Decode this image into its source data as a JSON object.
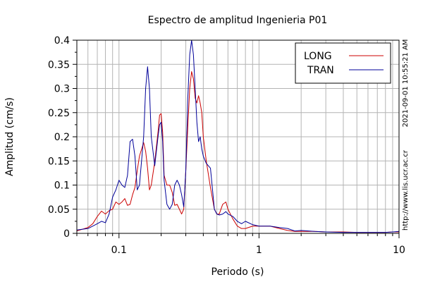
{
  "chart_data": {
    "type": "line",
    "title": "Espectro de amplitud Ingenieria P01",
    "xlabel": "Periodo (s)",
    "ylabel": "Amplitud (cm/s)",
    "xscale": "log",
    "xlim": [
      0.05,
      10
    ],
    "ylim": [
      0,
      0.4
    ],
    "grid": true,
    "legend_position": "top-right",
    "x_tick_labels": [
      {
        "value": 0.1,
        "label": "0.1"
      },
      {
        "value": 1,
        "label": "1"
      },
      {
        "value": 10,
        "label": "10"
      }
    ],
    "y_tick_labels": [
      {
        "value": 0,
        "label": "0"
      },
      {
        "value": 0.05,
        "label": "0.05"
      },
      {
        "value": 0.1,
        "label": "0.1"
      },
      {
        "value": 0.15,
        "label": "0.15"
      },
      {
        "value": 0.2,
        "label": "0.2"
      },
      {
        "value": 0.25,
        "label": "0.25"
      },
      {
        "value": 0.3,
        "label": "0.3"
      },
      {
        "value": 0.35,
        "label": "0.35"
      },
      {
        "value": 0.4,
        "label": "0.4"
      }
    ],
    "series": [
      {
        "name": "LONG",
        "color": "#cc0000",
        "x": [
          0.05,
          0.06,
          0.065,
          0.07,
          0.075,
          0.08,
          0.085,
          0.09,
          0.095,
          0.1,
          0.105,
          0.11,
          0.115,
          0.12,
          0.125,
          0.13,
          0.135,
          0.14,
          0.15,
          0.155,
          0.16,
          0.165,
          0.17,
          0.18,
          0.19,
          0.195,
          0.2,
          0.205,
          0.21,
          0.22,
          0.23,
          0.24,
          0.25,
          0.26,
          0.27,
          0.28,
          0.29,
          0.3,
          0.31,
          0.32,
          0.33,
          0.34,
          0.35,
          0.36,
          0.37,
          0.38,
          0.39,
          0.4,
          0.42,
          0.45,
          0.48,
          0.5,
          0.52,
          0.55,
          0.58,
          0.6,
          0.65,
          0.7,
          0.75,
          0.8,
          0.9,
          1.0,
          1.2,
          1.4,
          1.6,
          1.8,
          2.0,
          2.5,
          3.0,
          4.0,
          5.0,
          6.0,
          8.0,
          9.0,
          10.0
        ],
        "y": [
          0.005,
          0.012,
          0.02,
          0.035,
          0.046,
          0.04,
          0.047,
          0.05,
          0.065,
          0.06,
          0.065,
          0.072,
          0.058,
          0.06,
          0.08,
          0.095,
          0.13,
          0.16,
          0.188,
          0.17,
          0.135,
          0.09,
          0.1,
          0.148,
          0.21,
          0.245,
          0.248,
          0.21,
          0.12,
          0.1,
          0.1,
          0.085,
          0.058,
          0.06,
          0.05,
          0.04,
          0.05,
          0.13,
          0.22,
          0.3,
          0.335,
          0.32,
          0.28,
          0.27,
          0.285,
          0.27,
          0.25,
          0.2,
          0.15,
          0.095,
          0.05,
          0.04,
          0.04,
          0.06,
          0.065,
          0.05,
          0.03,
          0.015,
          0.01,
          0.01,
          0.015,
          0.015,
          0.015,
          0.01,
          0.006,
          0.004,
          0.004,
          0.004,
          0.003,
          0.003,
          0.002,
          0.002,
          0.002,
          0.003,
          0.003
        ]
      },
      {
        "name": "TRAN",
        "color": "#000099",
        "x": [
          0.05,
          0.06,
          0.065,
          0.07,
          0.075,
          0.08,
          0.085,
          0.09,
          0.095,
          0.1,
          0.105,
          0.11,
          0.115,
          0.12,
          0.125,
          0.13,
          0.135,
          0.14,
          0.15,
          0.155,
          0.16,
          0.165,
          0.17,
          0.18,
          0.19,
          0.195,
          0.2,
          0.205,
          0.21,
          0.22,
          0.23,
          0.24,
          0.25,
          0.26,
          0.27,
          0.28,
          0.29,
          0.3,
          0.31,
          0.32,
          0.33,
          0.34,
          0.35,
          0.36,
          0.37,
          0.38,
          0.39,
          0.4,
          0.42,
          0.45,
          0.48,
          0.5,
          0.52,
          0.55,
          0.58,
          0.6,
          0.65,
          0.7,
          0.75,
          0.8,
          0.9,
          1.0,
          1.2,
          1.4,
          1.6,
          1.8,
          2.0,
          2.5,
          3.0,
          4.0,
          5.0,
          6.0,
          8.0,
          9.0,
          10.0
        ],
        "y": [
          0.007,
          0.01,
          0.015,
          0.02,
          0.025,
          0.022,
          0.04,
          0.075,
          0.09,
          0.11,
          0.1,
          0.095,
          0.12,
          0.19,
          0.195,
          0.16,
          0.09,
          0.1,
          0.2,
          0.3,
          0.345,
          0.3,
          0.2,
          0.14,
          0.2,
          0.225,
          0.23,
          0.19,
          0.11,
          0.06,
          0.05,
          0.06,
          0.1,
          0.11,
          0.1,
          0.08,
          0.055,
          0.13,
          0.28,
          0.37,
          0.4,
          0.37,
          0.3,
          0.23,
          0.19,
          0.2,
          0.175,
          0.16,
          0.145,
          0.135,
          0.05,
          0.04,
          0.038,
          0.04,
          0.045,
          0.04,
          0.035,
          0.025,
          0.02,
          0.025,
          0.018,
          0.015,
          0.015,
          0.012,
          0.01,
          0.005,
          0.006,
          0.004,
          0.003,
          0.002,
          0.002,
          0.002,
          0.002,
          0.003,
          0.004
        ]
      }
    ],
    "side_labels": {
      "timestamp": "2021-09-01 10:55:21 AM",
      "url": "http://www.lis.ucr.ac.cr"
    }
  }
}
